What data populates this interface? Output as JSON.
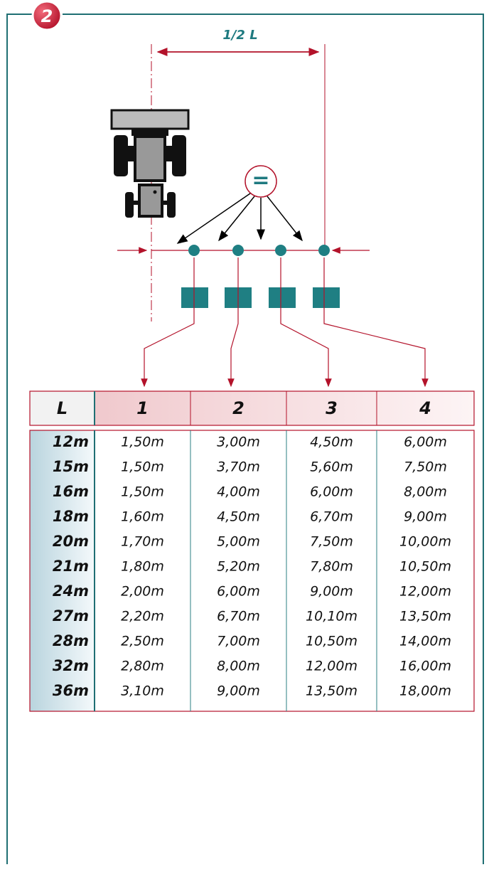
{
  "badge": "2",
  "half_label": "1/2 L",
  "equal_sign": "=",
  "table": {
    "header": [
      "L",
      "1",
      "2",
      "3",
      "4"
    ],
    "rows": [
      [
        "12m",
        "1,50m",
        "3,00m",
        "4,50m",
        "6,00m"
      ],
      [
        "15m",
        "1,50m",
        "3,70m",
        "5,60m",
        "7,50m"
      ],
      [
        "16m",
        "1,50m",
        "4,00m",
        "6,00m",
        "8,00m"
      ],
      [
        "18m",
        "1,60m",
        "4,50m",
        "6,70m",
        "9,00m"
      ],
      [
        "20m",
        "1,70m",
        "5,00m",
        "7,50m",
        "10,00m"
      ],
      [
        "21m",
        "1,80m",
        "5,20m",
        "7,80m",
        "10,50m"
      ],
      [
        "24m",
        "2,00m",
        "6,00m",
        "9,00m",
        "12,00m"
      ],
      [
        "27m",
        "2,20m",
        "6,70m",
        "10,10m",
        "13,50m"
      ],
      [
        "28m",
        "2,50m",
        "7,00m",
        "10,50m",
        "14,00m"
      ],
      [
        "32m",
        "2,80m",
        "8,00m",
        "12,00m",
        "16,00m"
      ],
      [
        "36m",
        "3,10m",
        "9,00m",
        "13,50m",
        "18,00m"
      ]
    ]
  }
}
